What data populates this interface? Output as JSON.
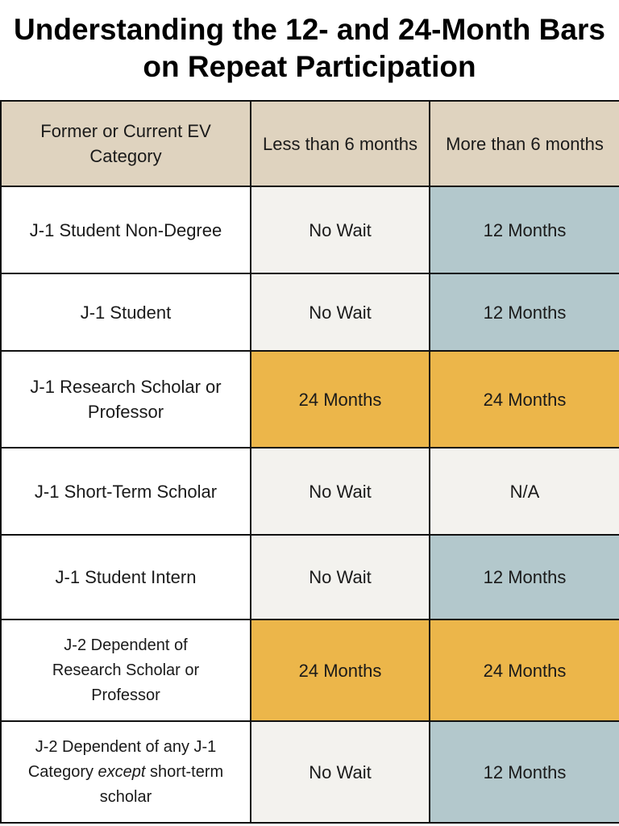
{
  "title": "Understanding the 12- and 24-Month Bars on Repeat Participation",
  "headers": [
    "Former or Current EV Category",
    "Less than 6 months",
    "More than 6 months"
  ],
  "colors": {
    "header": "#dfd3bf",
    "no_wait": "#f3f2ee",
    "12_months": "#b3c8cc",
    "24_months": "#ecb64a",
    "na": "#f3f2ee"
  },
  "rows": [
    {
      "category": "J-1 Student Non-Degree",
      "less": "No Wait",
      "more": "12 Months"
    },
    {
      "category": "J-1 Student",
      "less": "No Wait",
      "more": "12 Months"
    },
    {
      "category": "J-1 Research Scholar or Professor",
      "less": "24 Months",
      "more": "24 Months"
    },
    {
      "category": "J-1 Short-Term Scholar",
      "less": "No Wait",
      "more": "N/A"
    },
    {
      "category": "J-1 Student Intern",
      "less": "No Wait",
      "more": "12 Months"
    },
    {
      "category": "J-2 Dependent of Research Scholar or Professor",
      "less": "24 Months",
      "more": "24 Months"
    },
    {
      "category_parts": [
        "J-2 Dependent of any J-1 Category ",
        "except",
        " short-term scholar"
      ],
      "less": "No Wait",
      "more": "12 Months"
    }
  ]
}
